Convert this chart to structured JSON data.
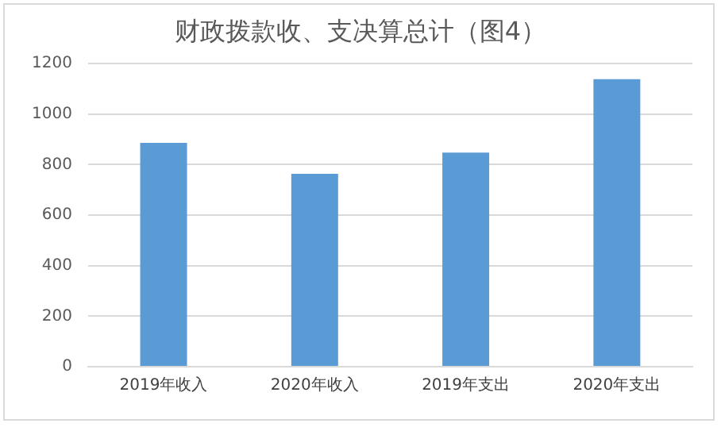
{
  "chart_data": {
    "type": "bar",
    "title": "财政拨款收、支决算总计（图4）",
    "categories": [
      "2019年收入",
      "2020年收入",
      "2019年支出",
      "2020年支出"
    ],
    "values": [
      886,
      763,
      847,
      1138
    ],
    "color": "#5b9bd5",
    "ylim": [
      0,
      1200
    ],
    "yticks": [
      0,
      200,
      400,
      600,
      800,
      1000,
      1200
    ],
    "grid": "y"
  }
}
